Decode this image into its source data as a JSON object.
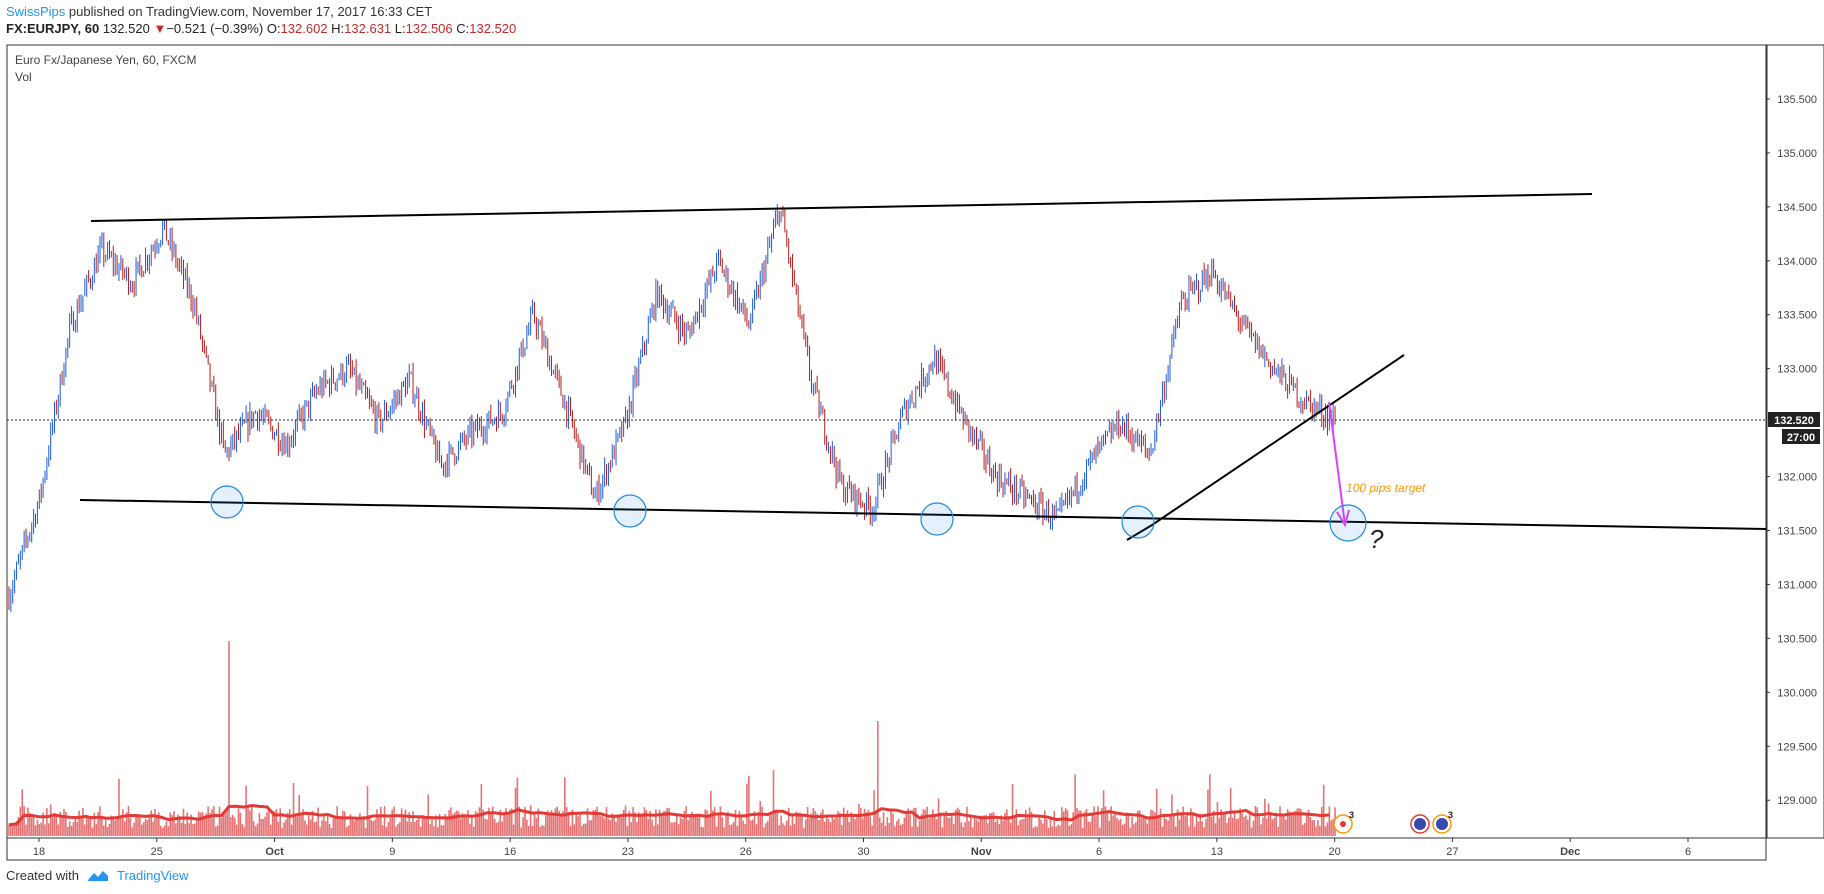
{
  "header": {
    "author": "SwissPips",
    "published": "published on TradingView.com, November 17, 2017 16:33 CET"
  },
  "quote": {
    "symbol": "FX:EURJPY, 60",
    "last": "132.520",
    "change": "−0.521 (−0.39%)",
    "o_label": "O:",
    "o": "132.602",
    "h_label": "H:",
    "h": "132.631",
    "l_label": "L:",
    "l": "132.506",
    "c_label": "C:",
    "c": "132.520"
  },
  "chart_data": {
    "type": "line",
    "title": "Euro Fx/Japanese Yen, 60, FXCM",
    "indicator": "Vol",
    "ylim": [
      128.65,
      136.0
    ],
    "y_ticks": [
      "135.500",
      "135.000",
      "134.500",
      "134.000",
      "133.500",
      "133.000",
      "132.000",
      "131.500",
      "131.000",
      "130.500",
      "130.000",
      "129.500",
      "129.000"
    ],
    "x_ticks": [
      "18",
      "25",
      "Oct",
      "9",
      "16",
      "23",
      "26",
      "30",
      "Nov",
      "6",
      "13",
      "20",
      "27",
      "Dec",
      "6"
    ],
    "last_price_label": "132.520",
    "countdown_label": "27:00",
    "series": [
      {
        "values": [
          130.9,
          131.8,
          133.4,
          134.1,
          133.8,
          134.3,
          133.6,
          132.2,
          132.6,
          132.3,
          132.8,
          133.0,
          132.5,
          132.9,
          132.1,
          132.4,
          132.6,
          133.5,
          132.7,
          131.8,
          132.5,
          133.7,
          133.3,
          134.0,
          133.4,
          134.5,
          132.9,
          131.9,
          131.7,
          132.6,
          133.1,
          132.5,
          132.0,
          131.8,
          131.6,
          132.1,
          132.5,
          132.2,
          133.6,
          133.9,
          133.4,
          133.0,
          132.7,
          132.52
        ]
      }
    ],
    "annotations": {
      "target_label": "100 pips target",
      "question": "?"
    },
    "colors": {
      "up": "#1e5bd6",
      "down": "#b71c1c",
      "volume": "#e57373",
      "volume_ma": "#e53935",
      "arrow": "#e040fb",
      "target_text": "#ff9800",
      "circle": "#1e88e5"
    }
  },
  "event_badges": [
    "3",
    "3"
  ],
  "footer": {
    "created_with": "Created with",
    "brand": "TradingView"
  }
}
